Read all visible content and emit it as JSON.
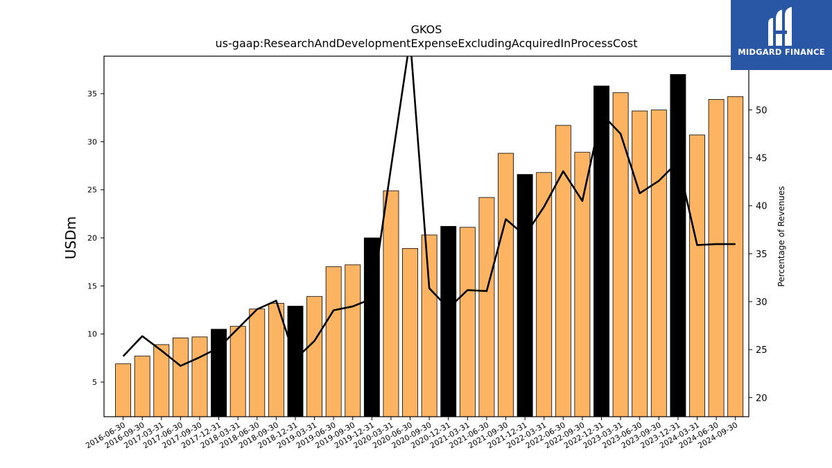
{
  "chart_data": {
    "type": "bar",
    "title": "GKOS",
    "subtitle": "us-gaap:ResearchAndDevelopmentExpenseExcludingAcquiredInProcessCost",
    "ylabel": "USDm",
    "y2label": "Percentage of Revenues",
    "ylim": [
      1.4,
      38.9
    ],
    "y2lim": [
      18.0,
      55.6
    ],
    "yticks": [
      5,
      10,
      15,
      20,
      25,
      30,
      35
    ],
    "y2ticks": [
      20,
      25,
      30,
      35,
      40,
      45,
      50
    ],
    "grid": false,
    "colors": {
      "bar": "#fdb462",
      "bar_highlight": "#000000",
      "line": "#000000"
    },
    "categories": [
      "2016-06-30",
      "2016-09-30",
      "2017-03-31",
      "2017-06-30",
      "2017-09-30",
      "2017-12-31",
      "2018-03-31",
      "2018-06-30",
      "2018-09-30",
      "2018-12-31",
      "2019-03-31",
      "2019-06-30",
      "2019-09-30",
      "2019-12-31",
      "2020-03-31",
      "2020-06-30",
      "2020-09-30",
      "2020-12-31",
      "2021-03-31",
      "2021-06-30",
      "2021-09-30",
      "2021-12-31",
      "2022-03-31",
      "2022-06-30",
      "2022-09-30",
      "2022-12-31",
      "2023-03-31",
      "2023-06-30",
      "2023-09-30",
      "2023-12-31",
      "2024-03-31",
      "2024-06-30",
      "2024-09-30"
    ],
    "series": [
      {
        "kind": "bar",
        "axis": "left",
        "values": [
          6.9,
          7.7,
          8.9,
          9.6,
          9.7,
          10.5,
          10.8,
          12.6,
          13.2,
          12.9,
          13.9,
          17.0,
          17.2,
          20.0,
          24.9,
          18.9,
          20.3,
          21.2,
          21.1,
          24.2,
          28.8,
          26.6,
          26.8,
          31.7,
          28.9,
          35.8,
          35.1,
          33.2,
          33.3,
          37.0,
          30.7,
          34.4,
          34.7
        ],
        "highlight": [
          false,
          false,
          false,
          false,
          false,
          true,
          false,
          false,
          false,
          true,
          false,
          false,
          false,
          true,
          false,
          false,
          false,
          true,
          false,
          false,
          false,
          true,
          false,
          false,
          false,
          true,
          false,
          false,
          false,
          true,
          false,
          false,
          false
        ]
      },
      {
        "kind": "line",
        "axis": "right",
        "values": [
          24.3,
          26.4,
          24.9,
          23.3,
          24.2,
          25.2,
          27.2,
          29.2,
          30.1,
          24.0,
          25.9,
          29.1,
          29.5,
          30.3,
          44.0,
          57.4,
          31.4,
          29.3,
          31.2,
          31.1,
          38.6,
          36.9,
          39.9,
          43.6,
          40.5,
          49.6,
          47.5,
          41.3,
          42.6,
          44.6,
          35.9,
          36.0,
          36.0
        ]
      }
    ]
  },
  "branding": {
    "logo_text": "MIDGARD FINANCE",
    "logo_icon": "midgard-m-icon"
  }
}
